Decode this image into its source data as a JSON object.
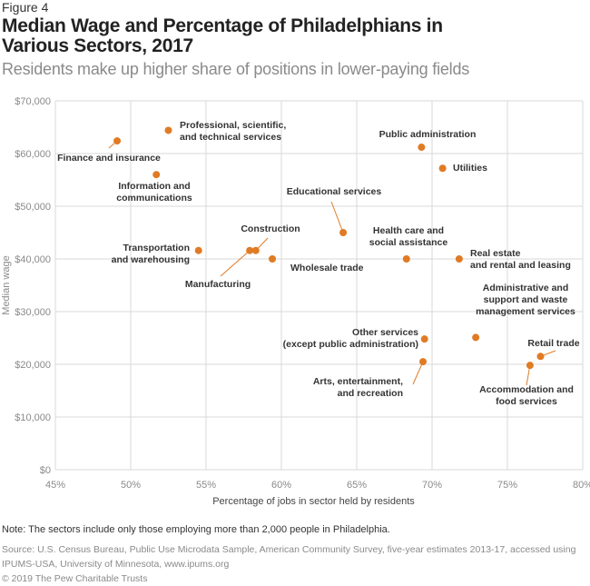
{
  "figure_label": "Figure 4",
  "title": "Median Wage and Percentage of Philadelphians in Various Sectors, 2017",
  "subtitle": "Residents make up higher share of positions in lower-paying fields",
  "note": "Note: The sectors include only those employing more than 2,000 people in Philadelphia.",
  "source": "Source: U.S. Census Bureau, Public Use Microdata Sample, American Community Survey, five-year estimates 2013-17, accessed using IPUMS-USA, University of Minnesota, www.ipums.org",
  "copyright": "© 2019 The Pew Charitable Trusts",
  "colors": {
    "point": "#e07b24",
    "grid": "#d9d9d9",
    "label": "#333333",
    "tick": "#8a8a8a"
  },
  "chart_data": {
    "type": "scatter",
    "title": "Median Wage and Percentage of Philadelphians in Various Sectors, 2017",
    "subtitle": "Residents make up higher share of positions in lower-paying fields",
    "xlabel": "Percentage of jobs in sector held by residents",
    "ylabel": "Median wage",
    "xlim": [
      45,
      80
    ],
    "ylim": [
      0,
      70000
    ],
    "grid": true,
    "x_ticks": [
      "45%",
      "50%",
      "55%",
      "60%",
      "65%",
      "70%",
      "75%",
      "80%"
    ],
    "y_ticks": [
      "$0",
      "$10,000",
      "$20,000",
      "$30,000",
      "$40,000",
      "$50,000",
      "$60,000",
      "$70,000"
    ],
    "points": [
      {
        "label": [
          "Finance and insurance"
        ],
        "x": 49.1,
        "y": 62400
      },
      {
        "label": [
          "Professional, scientific,",
          "and technical services"
        ],
        "x": 52.5,
        "y": 64400
      },
      {
        "label": [
          "Information and",
          "communications"
        ],
        "x": 51.7,
        "y": 56000
      },
      {
        "label": [
          "Public administration"
        ],
        "x": 69.3,
        "y": 61200
      },
      {
        "label": [
          "Utilities"
        ],
        "x": 70.7,
        "y": 57200
      },
      {
        "label": [
          "Educational services"
        ],
        "x": 64.1,
        "y": 45000
      },
      {
        "label": [
          "Transportation",
          "and warehousing"
        ],
        "x": 54.5,
        "y": 41600
      },
      {
        "label": [
          "Manufacturing"
        ],
        "x": 57.9,
        "y": 41600
      },
      {
        "label": [
          "Construction"
        ],
        "x": 58.3,
        "y": 41600
      },
      {
        "label": [
          "Wholesale trade"
        ],
        "x": 59.4,
        "y": 40000
      },
      {
        "label": [
          "Health care and",
          "social assistance"
        ],
        "x": 68.3,
        "y": 40000
      },
      {
        "label": [
          "Real estate",
          "and rental and leasing"
        ],
        "x": 71.8,
        "y": 40000
      },
      {
        "label": [
          "Administrative and",
          "support and waste",
          "management services"
        ],
        "x": 72.9,
        "y": 25100
      },
      {
        "label": [
          "Other services",
          "(except public administration)"
        ],
        "x": 69.5,
        "y": 24800
      },
      {
        "label": [
          "Arts, entertainment,",
          "and recreation"
        ],
        "x": 69.4,
        "y": 20500
      },
      {
        "label": [
          "Retail trade"
        ],
        "x": 77.2,
        "y": 21500
      },
      {
        "label": [
          "Accommodation and",
          "food services"
        ],
        "x": 76.5,
        "y": 19800
      }
    ]
  }
}
